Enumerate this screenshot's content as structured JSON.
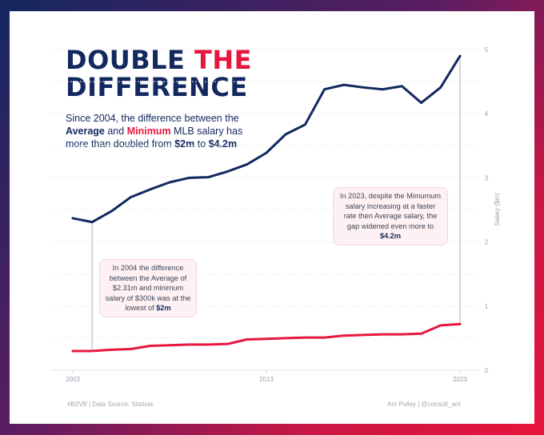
{
  "title": {
    "line1_part1": "DOUBLE",
    "line1_part2": "THE",
    "line2": "DIFFERENCE"
  },
  "subtitle": {
    "t1": "Since 2004, the difference between the",
    "avg": "Average",
    "t2": "and",
    "min": "Minimum",
    "t3": "MLB salary has more than doubled from",
    "v1": "$2m",
    "t4": "to",
    "v2": "$4.2m"
  },
  "annotations": {
    "a2004": {
      "text": "In 2004 the difference between the Average of $2.31m  and minimum salary of $300k was at the lowest of",
      "bold": "$2m"
    },
    "a2023": {
      "text": "In 2023, despite the Mimumum salary increasing at a faster rate then Average salary, the gap widened even more to",
      "bold": "$4.2m"
    }
  },
  "footer": {
    "left": "#B2VB | Data Source: Statista",
    "right": "Ant Pulley | @consult_ant"
  },
  "colors": {
    "average": "#13285f",
    "minimum": "#e5173f",
    "grid": "#ececf0",
    "connector": "#d6d6da"
  },
  "chart_data": {
    "type": "line",
    "title": "DOUBLE THE DIFFERENCE",
    "xlabel": "",
    "ylabel": "Salary ($m)",
    "x": [
      2003,
      2004,
      2005,
      2006,
      2007,
      2008,
      2009,
      2010,
      2011,
      2012,
      2013,
      2014,
      2015,
      2016,
      2017,
      2018,
      2019,
      2020,
      2021,
      2022,
      2023
    ],
    "series": [
      {
        "name": "Average",
        "values": [
          2.37,
          2.31,
          2.48,
          2.7,
          2.82,
          2.93,
          3.0,
          3.01,
          3.1,
          3.21,
          3.39,
          3.68,
          3.83,
          4.38,
          4.45,
          4.41,
          4.38,
          4.43,
          4.17,
          4.41,
          4.9
        ]
      },
      {
        "name": "Minimum",
        "values": [
          0.3,
          0.3,
          0.32,
          0.33,
          0.38,
          0.39,
          0.4,
          0.4,
          0.41,
          0.48,
          0.49,
          0.5,
          0.51,
          0.51,
          0.54,
          0.55,
          0.56,
          0.56,
          0.57,
          0.7,
          0.72
        ]
      }
    ],
    "xticks": [
      2003,
      2013,
      2023
    ],
    "yticks": [
      0,
      1,
      2,
      3,
      4,
      5
    ],
    "xlim": [
      2003,
      2023
    ],
    "ylim": [
      0,
      5
    ],
    "connectors": [
      {
        "year": 2004,
        "from": 0.3,
        "to": 2.31
      },
      {
        "year": 2023,
        "from": 0.72,
        "to": 4.9
      }
    ],
    "legend": "none"
  }
}
